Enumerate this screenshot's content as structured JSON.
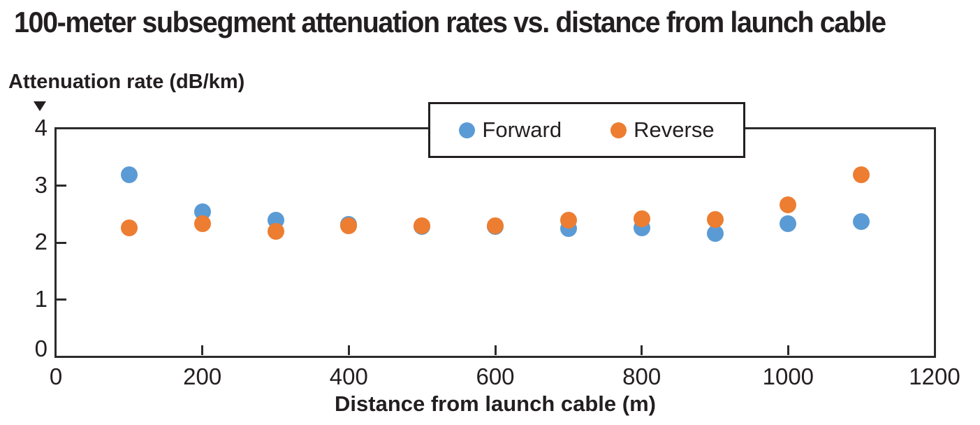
{
  "figure": {
    "title": "100-meter subsegment attenuation rates vs. distance from launch cable"
  },
  "colors": {
    "forward": "#5B9BD5",
    "reverse": "#ED7D31",
    "ink": "#231F20",
    "axis": "#2B2B2B",
    "background": "#FFFFFF"
  },
  "legend": {
    "items": [
      {
        "label": "Forward",
        "color_key": "forward"
      },
      {
        "label": "Reverse",
        "color_key": "reverse"
      }
    ]
  },
  "chart_data": {
    "type": "scatter",
    "title": "100-meter subsegment attenuation rates vs. distance from launch cable",
    "xlabel": "Distance from launch cable (m)",
    "ylabel": "Attenuation rate (dB/km)",
    "xlim": [
      0,
      1200
    ],
    "ylim": [
      0,
      4
    ],
    "x_ticks": [
      0,
      200,
      400,
      600,
      800,
      1000,
      1200
    ],
    "y_ticks": [
      0,
      1,
      2,
      3,
      4
    ],
    "grid": false,
    "legend_position": "top-center-inside",
    "x": [
      100,
      200,
      300,
      400,
      500,
      600,
      700,
      800,
      900,
      1000,
      1100
    ],
    "series": [
      {
        "name": "Forward",
        "color_key": "forward",
        "values": [
          3.19,
          2.54,
          2.39,
          2.32,
          2.28,
          2.28,
          2.25,
          2.26,
          2.16,
          2.33,
          2.37
        ]
      },
      {
        "name": "Reverse",
        "color_key": "reverse",
        "values": [
          2.26,
          2.33,
          2.2,
          2.29,
          2.3,
          2.3,
          2.39,
          2.42,
          2.4,
          2.66,
          3.19
        ]
      }
    ]
  }
}
